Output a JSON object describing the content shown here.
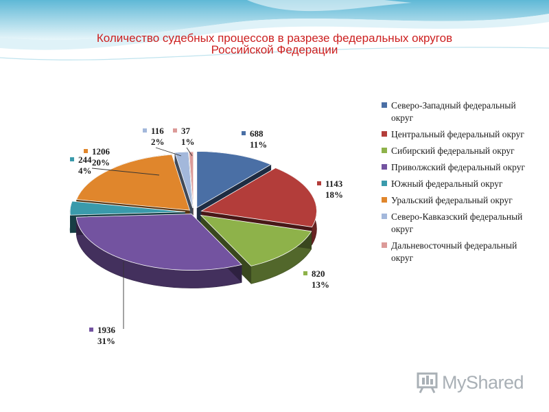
{
  "title": {
    "line1": "Количество судебных процессов в разрезе федеральных округов",
    "line2": "Российской Федерации"
  },
  "chart_data": {
    "type": "pie",
    "style": "3d-exploded",
    "legend_position": "right",
    "slices": [
      {
        "legend": "Северо-Западный федеральный округ",
        "value": 688,
        "percent": "11%",
        "color": "#4a6fa5"
      },
      {
        "legend": "Центральный федеральный округ",
        "value": 1143,
        "percent": "18%",
        "color": "#b33d3a"
      },
      {
        "legend": "Сибирский федеральный округ",
        "value": 820,
        "percent": "13%",
        "color": "#8eb24a"
      },
      {
        "legend": "Приволжский федеральный округ",
        "value": 1936,
        "percent": "31%",
        "color": "#7353a0"
      },
      {
        "legend": "Южный федеральный округ",
        "value": 244,
        "percent": "4%",
        "color": "#3a9aab"
      },
      {
        "legend": "Уральский федеральный округ",
        "value": 1206,
        "percent": "20%",
        "color": "#e0862c"
      },
      {
        "legend": "Северо-Кавказский федеральный округ",
        "value": 116,
        "percent": "2%",
        "color": "#a3b8db"
      },
      {
        "legend": "Дальневосточный федеральный округ",
        "value": 37,
        "percent": "1%",
        "color": "#dc9a98"
      }
    ]
  },
  "watermark": {
    "text": "MyShared"
  }
}
